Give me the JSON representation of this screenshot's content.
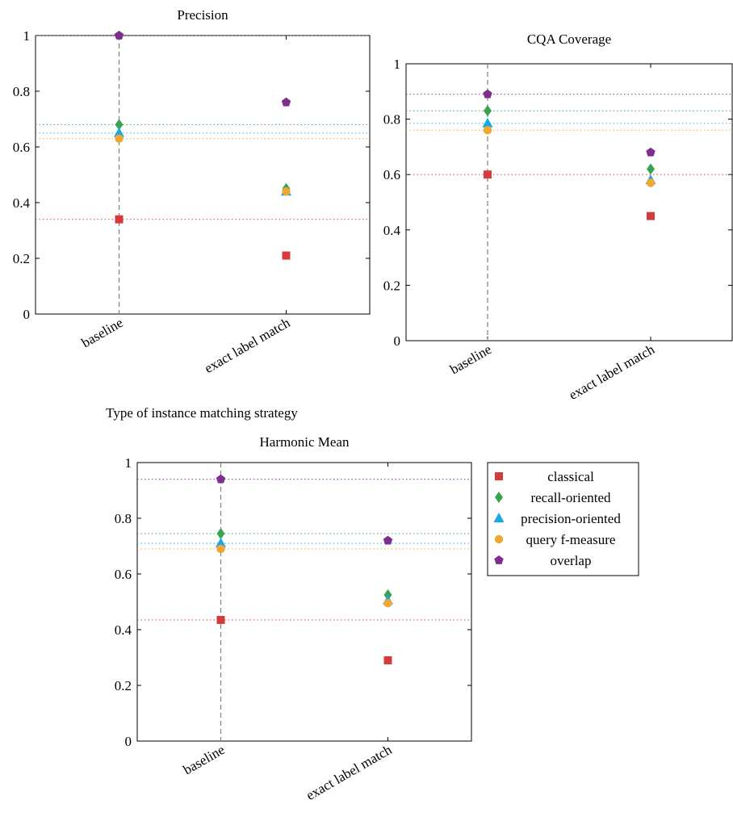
{
  "figure_caption": "Type of instance matching strategy",
  "colors": {
    "classical": "#d63a3d",
    "recall-oriented": "#3aa352",
    "precision-oriented": "#1aa7e6",
    "query f-measure": "#f0a830",
    "overlap": "#7e2f8e",
    "baseline_line": "#808080",
    "axis": "#000000"
  },
  "chart_data": [
    {
      "type": "scatter",
      "title": "Precision",
      "xlabel": "",
      "ylabel": "",
      "categories": [
        "baseline",
        "exact label match"
      ],
      "ylim": [
        0,
        1
      ],
      "yticks": [
        "0",
        "0.2",
        "0.4",
        "0.6",
        "0.8",
        "1"
      ],
      "grid": false,
      "baseline_reference_lines": true,
      "series": [
        {
          "name": "classical",
          "marker": "square",
          "values": [
            0.34,
            0.21
          ]
        },
        {
          "name": "recall-oriented",
          "marker": "diamond",
          "values": [
            0.68,
            0.45
          ]
        },
        {
          "name": "precision-oriented",
          "marker": "triangle",
          "values": [
            0.65,
            0.44
          ]
        },
        {
          "name": "query f-measure",
          "marker": "circle",
          "values": [
            0.63,
            0.44
          ]
        },
        {
          "name": "overlap",
          "marker": "pentagon",
          "values": [
            1.0,
            0.76
          ]
        }
      ]
    },
    {
      "type": "scatter",
      "title": "CQA Coverage",
      "xlabel": "",
      "ylabel": "",
      "categories": [
        "baseline",
        "exact label match"
      ],
      "ylim": [
        0,
        1
      ],
      "yticks": [
        "0",
        "0.2",
        "0.4",
        "0.6",
        "0.8",
        "1"
      ],
      "grid": false,
      "baseline_reference_lines": true,
      "series": [
        {
          "name": "classical",
          "marker": "square",
          "values": [
            0.6,
            0.45
          ]
        },
        {
          "name": "recall-oriented",
          "marker": "diamond",
          "values": [
            0.83,
            0.62
          ]
        },
        {
          "name": "precision-oriented",
          "marker": "triangle",
          "values": [
            0.785,
            0.58
          ]
        },
        {
          "name": "query f-measure",
          "marker": "circle",
          "values": [
            0.76,
            0.57
          ]
        },
        {
          "name": "overlap",
          "marker": "pentagon",
          "values": [
            0.89,
            0.68
          ]
        }
      ]
    },
    {
      "type": "scatter",
      "title": "Harmonic Mean",
      "xlabel": "",
      "ylabel": "",
      "categories": [
        "baseline",
        "exact label match"
      ],
      "ylim": [
        0,
        1
      ],
      "yticks": [
        "0",
        "0.2",
        "0.4",
        "0.6",
        "0.8",
        "1"
      ],
      "grid": false,
      "baseline_reference_lines": true,
      "series": [
        {
          "name": "classical",
          "marker": "square",
          "values": [
            0.435,
            0.29
          ]
        },
        {
          "name": "recall-oriented",
          "marker": "diamond",
          "values": [
            0.745,
            0.525
          ]
        },
        {
          "name": "precision-oriented",
          "marker": "triangle",
          "values": [
            0.71,
            0.505
          ]
        },
        {
          "name": "query f-measure",
          "marker": "circle",
          "values": [
            0.69,
            0.495
          ]
        },
        {
          "name": "overlap",
          "marker": "pentagon",
          "values": [
            0.94,
            0.72
          ]
        }
      ]
    }
  ],
  "legend": {
    "placement": "right of Harmonic Mean chart",
    "entries": [
      "classical",
      "recall-oriented",
      "precision-oriented",
      "query f-measure",
      "overlap"
    ]
  }
}
